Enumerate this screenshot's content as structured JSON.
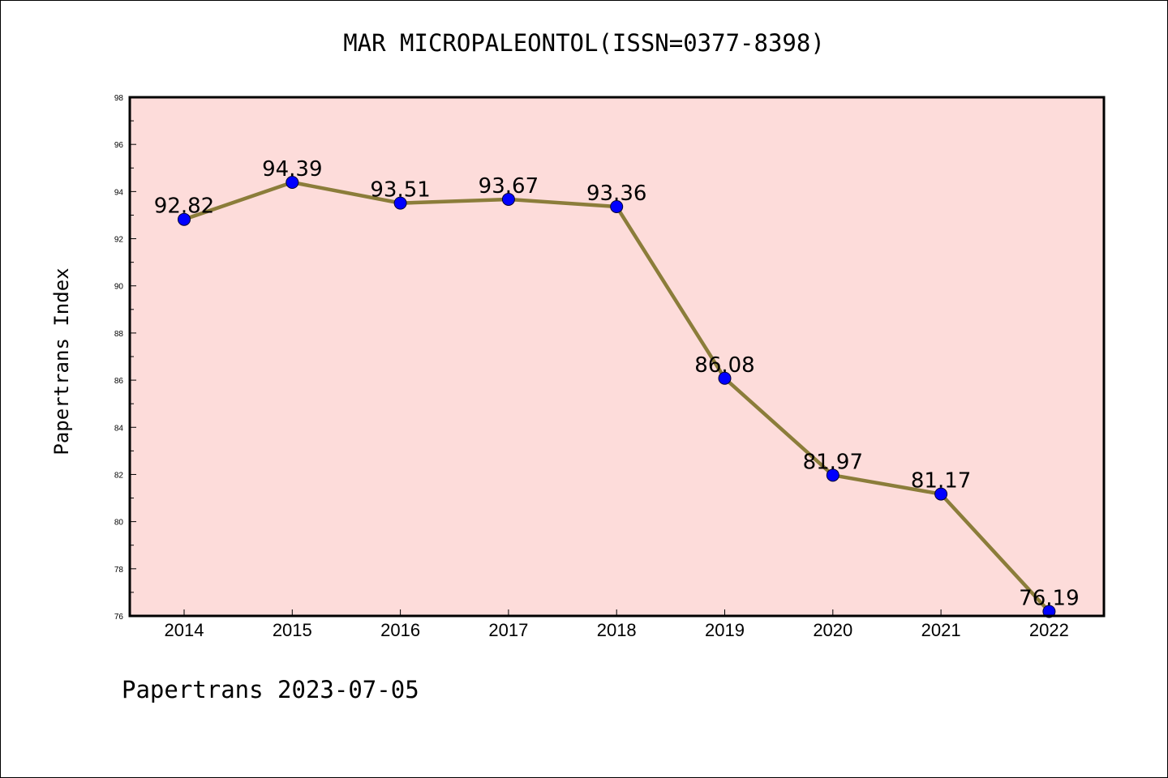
{
  "chart_data": {
    "type": "line",
    "title": "MAR MICROPALEONTOL(ISSN=0377-8398)",
    "xlabel": "",
    "ylabel": "Papertrans Index",
    "categories": [
      "2014",
      "2015",
      "2016",
      "2017",
      "2018",
      "2019",
      "2020",
      "2021",
      "2022"
    ],
    "series": [
      {
        "values": [
          92.82,
          94.39,
          93.51,
          93.67,
          93.36,
          86.08,
          81.97,
          81.17,
          76.19
        ],
        "labels": [
          "92.82",
          "94.39",
          "93.51",
          "93.67",
          "93.36",
          "86.08",
          "81.97",
          "81.17",
          "76.19"
        ],
        "line_color": "#8B7D3A",
        "marker_color": "#0000FF"
      }
    ],
    "ylim": [
      76,
      98
    ],
    "yticks": [
      "76",
      "78",
      "80",
      "82",
      "84",
      "86",
      "88",
      "90",
      "92",
      "94",
      "96",
      "98"
    ],
    "grid": false,
    "plot_background": "#FDDCDA"
  },
  "footer": "Papertrans 2023-07-05"
}
